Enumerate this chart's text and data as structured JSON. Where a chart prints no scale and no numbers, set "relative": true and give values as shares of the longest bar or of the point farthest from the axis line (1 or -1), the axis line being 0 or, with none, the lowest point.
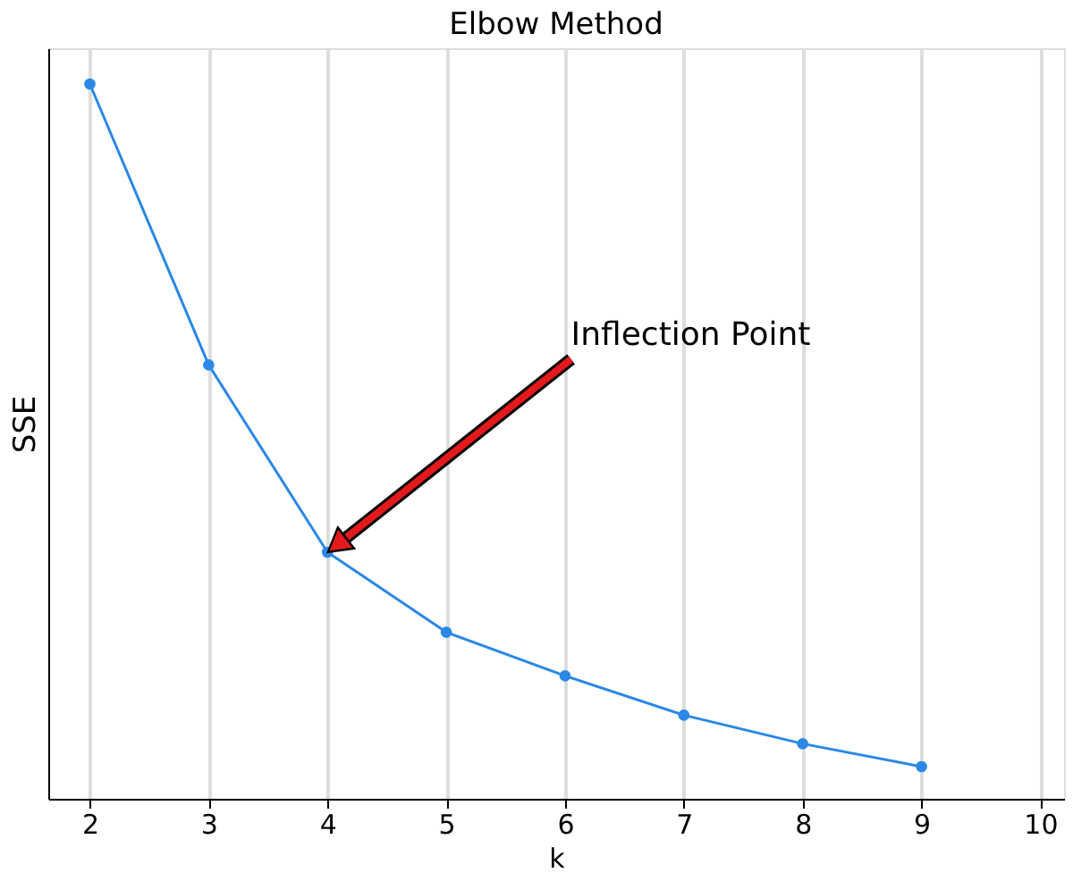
{
  "chart_data": {
    "type": "line",
    "title": "Elbow Method",
    "xlabel": "k",
    "ylabel": "SSE",
    "relative": true,
    "x": [
      2,
      3,
      4,
      5,
      6,
      7,
      8,
      9
    ],
    "series": [
      {
        "color": "#2a88e6",
        "values": [
          1,
          0.607,
          0.345,
          0.233,
          0.172,
          0.117,
          0.077,
          0.045
        ]
      }
    ],
    "xlim": [
      1.65,
      10.2
    ],
    "xticks": [
      2,
      3,
      4,
      5,
      6,
      7,
      8,
      9,
      10
    ],
    "grid": "x",
    "marker": "circle",
    "line_style": "solid",
    "annotations": [
      {
        "text": "Inflection Point",
        "x": 4,
        "y": 0.345
      }
    ]
  }
}
